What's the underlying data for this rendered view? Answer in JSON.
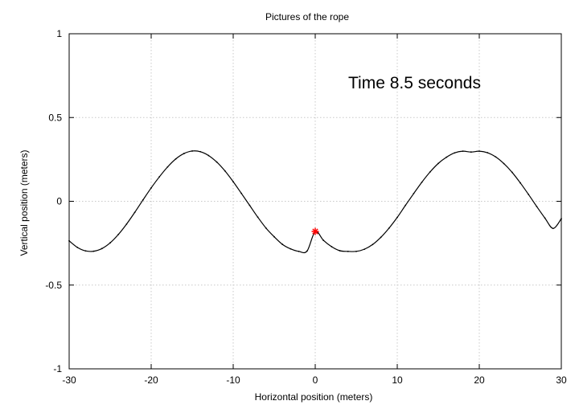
{
  "chart_data": {
    "type": "line",
    "title": "Pictures of the rope",
    "xlabel": "Horizontal position (meters)",
    "ylabel": "Vertical position (meters)",
    "xlim": [
      -30,
      30
    ],
    "ylim": [
      -1,
      1
    ],
    "xticks": [
      -30,
      -20,
      -10,
      0,
      10,
      20,
      30
    ],
    "yticks": [
      -1,
      -0.5,
      0,
      0.5,
      1
    ],
    "xtick_labels": [
      "-30",
      "-20",
      "-10",
      "0",
      "10",
      "20",
      "30"
    ],
    "ytick_labels": [
      "-1",
      "-0.5",
      "0",
      "0.5",
      "1"
    ],
    "grid": true,
    "annotation": "Time  8.5 seconds",
    "series": [
      {
        "color": "#000000",
        "x": [
          -30,
          -29,
          -28,
          -27,
          -26,
          -25,
          -24,
          -23,
          -22,
          -21,
          -20,
          -19,
          -18,
          -17,
          -16,
          -15,
          -14,
          -13,
          -12,
          -11,
          -10,
          -9,
          -8,
          -7,
          -6,
          -5,
          -4,
          -3,
          -2,
          -1,
          0,
          1,
          2,
          3,
          4,
          5,
          6,
          7,
          8,
          9,
          10,
          11,
          12,
          13,
          14,
          15,
          16,
          17,
          18,
          19,
          20,
          21,
          22,
          23,
          24,
          25,
          26,
          27,
          28,
          29,
          30
        ],
        "y": [
          -0.236,
          -0.275,
          -0.296,
          -0.298,
          -0.282,
          -0.248,
          -0.198,
          -0.136,
          -0.066,
          0.008,
          0.08,
          0.146,
          0.205,
          0.253,
          0.285,
          0.3,
          0.296,
          0.273,
          0.234,
          0.181,
          0.117,
          0.047,
          -0.024,
          -0.095,
          -0.16,
          -0.212,
          -0.257,
          -0.284,
          -0.299,
          -0.297,
          -0.181,
          -0.233,
          -0.271,
          -0.295,
          -0.299,
          -0.299,
          -0.286,
          -0.258,
          -0.215,
          -0.16,
          -0.096,
          -0.024,
          0.046,
          0.114,
          0.175,
          0.226,
          0.263,
          0.289,
          0.299,
          0.294,
          0.299,
          0.29,
          0.265,
          0.225,
          0.173,
          0.11,
          0.041,
          -0.031,
          -0.1,
          -0.162,
          -0.104
        ]
      }
    ],
    "marker": {
      "x": 0,
      "y": -0.18,
      "symbol": "asterisk",
      "color": "#ff0000"
    }
  }
}
